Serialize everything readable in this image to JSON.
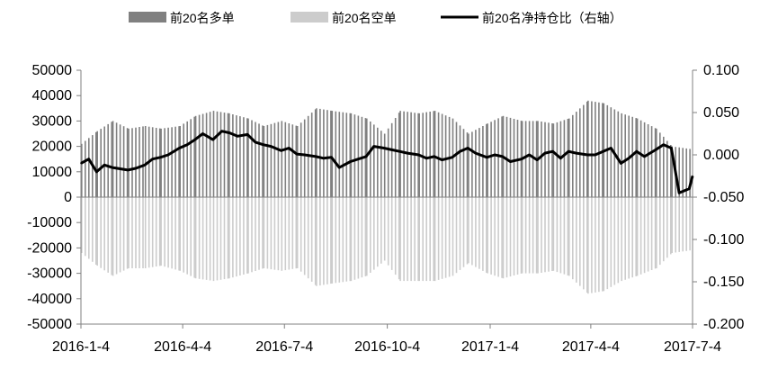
{
  "chart_data": {
    "type": "bar",
    "title": "",
    "xlabel": "",
    "ylabel": "",
    "ylim": [
      -50000,
      50000
    ],
    "y2lim": [
      -0.2,
      0.1
    ],
    "left_ticks": [
      "50000",
      "40000",
      "30000",
      "20000",
      "10000",
      "0",
      "-10000",
      "-20000",
      "-30000",
      "-40000",
      "-50000"
    ],
    "left_tick_values": [
      50000,
      40000,
      30000,
      20000,
      10000,
      0,
      -10000,
      -20000,
      -30000,
      -40000,
      -50000
    ],
    "right_ticks": [
      "0.100",
      "0.050",
      "0.000",
      "-0.050",
      "-0.100",
      "-0.150",
      "-0.200"
    ],
    "right_tick_values": [
      0.1,
      0.05,
      0.0,
      -0.05,
      -0.1,
      -0.15,
      -0.2
    ],
    "x_range": [
      "2016-01-04",
      "2017-07-04"
    ],
    "x_ticks": [
      {
        "label": "2016-1-4",
        "date": "2016-01-04"
      },
      {
        "label": "2016-4-4",
        "date": "2016-04-04"
      },
      {
        "label": "2016-7-4",
        "date": "2016-07-04"
      },
      {
        "label": "2016-10-4",
        "date": "2016-10-04"
      },
      {
        "label": "2017-1-4",
        "date": "2017-01-04"
      },
      {
        "label": "2017-4-4",
        "date": "2017-04-04"
      },
      {
        "label": "2017-7-4",
        "date": "2017-07-04"
      }
    ],
    "legend": {
      "placement": "top",
      "items": [
        {
          "label": "前20名多单",
          "kind": "bar",
          "color": "#808080"
        },
        {
          "label": "前20名空单",
          "kind": "bar",
          "color": "#cccccc"
        },
        {
          "label": "前20名净持仓比（右轴）",
          "kind": "line",
          "color": "#000000"
        }
      ]
    },
    "series": [
      {
        "name": "前20名多单",
        "axis": "left",
        "color": "#808080",
        "x": [
          "2016-01-04",
          "2016-01-18",
          "2016-02-01",
          "2016-02-15",
          "2016-03-01",
          "2016-03-15",
          "2016-04-01",
          "2016-04-15",
          "2016-05-01",
          "2016-05-15",
          "2016-06-01",
          "2016-06-15",
          "2016-07-01",
          "2016-07-15",
          "2016-08-01",
          "2016-08-15",
          "2016-09-01",
          "2016-09-15",
          "2016-10-01",
          "2016-10-15",
          "2016-11-01",
          "2016-11-15",
          "2016-12-01",
          "2016-12-15",
          "2017-01-01",
          "2017-01-15",
          "2017-02-01",
          "2017-02-15",
          "2017-03-01",
          "2017-03-15",
          "2017-04-01",
          "2017-04-15",
          "2017-05-01",
          "2017-05-15",
          "2017-06-01",
          "2017-06-15",
          "2017-07-01",
          "2017-07-04"
        ],
        "values": [
          21000,
          26000,
          30000,
          27000,
          28000,
          27000,
          28000,
          32000,
          34000,
          33000,
          31000,
          28000,
          30000,
          28000,
          35000,
          34000,
          33000,
          31000,
          25000,
          34000,
          33000,
          34000,
          31000,
          25000,
          29000,
          32000,
          30000,
          30000,
          29000,
          31000,
          38000,
          37000,
          33000,
          31000,
          27000,
          20000,
          19000,
          27000
        ]
      },
      {
        "name": "前20名空单",
        "axis": "left",
        "color": "#cccccc",
        "x": [
          "2016-01-04",
          "2016-01-18",
          "2016-02-01",
          "2016-02-15",
          "2016-03-01",
          "2016-03-15",
          "2016-04-01",
          "2016-04-15",
          "2016-05-01",
          "2016-05-15",
          "2016-06-01",
          "2016-06-15",
          "2016-07-01",
          "2016-07-15",
          "2016-08-01",
          "2016-08-15",
          "2016-09-01",
          "2016-09-15",
          "2016-10-01",
          "2016-10-15",
          "2016-11-01",
          "2016-11-15",
          "2016-12-01",
          "2016-12-15",
          "2017-01-01",
          "2017-01-15",
          "2017-02-01",
          "2017-02-15",
          "2017-03-01",
          "2017-03-15",
          "2017-04-01",
          "2017-04-15",
          "2017-05-01",
          "2017-05-15",
          "2017-06-01",
          "2017-06-15",
          "2017-07-01",
          "2017-07-04"
        ],
        "values": [
          -22000,
          -27000,
          -31000,
          -28000,
          -28000,
          -27000,
          -29000,
          -32000,
          -33000,
          -32000,
          -30000,
          -28000,
          -29000,
          -28000,
          -35000,
          -34000,
          -33000,
          -31000,
          -25000,
          -33000,
          -33000,
          -33000,
          -31000,
          -26000,
          -30000,
          -32000,
          -30000,
          -30000,
          -29000,
          -31000,
          -38000,
          -37000,
          -33000,
          -31000,
          -28000,
          -22000,
          -21000,
          -28000
        ]
      },
      {
        "name": "前20名净持仓比（右轴）",
        "axis": "right",
        "type": "line",
        "color": "#000000",
        "x": [
          "2016-01-04",
          "2016-01-11",
          "2016-01-18",
          "2016-01-25",
          "2016-02-01",
          "2016-02-15",
          "2016-02-22",
          "2016-03-01",
          "2016-03-08",
          "2016-03-15",
          "2016-03-22",
          "2016-04-01",
          "2016-04-08",
          "2016-04-15",
          "2016-04-22",
          "2016-05-01",
          "2016-05-09",
          "2016-05-16",
          "2016-05-23",
          "2016-06-01",
          "2016-06-08",
          "2016-06-15",
          "2016-06-22",
          "2016-07-01",
          "2016-07-08",
          "2016-07-15",
          "2016-07-22",
          "2016-08-01",
          "2016-08-08",
          "2016-08-15",
          "2016-08-22",
          "2016-09-01",
          "2016-09-08",
          "2016-09-15",
          "2016-09-22",
          "2016-10-01",
          "2016-10-08",
          "2016-10-15",
          "2016-10-22",
          "2016-11-01",
          "2016-11-08",
          "2016-11-15",
          "2016-11-22",
          "2016-12-01",
          "2016-12-08",
          "2016-12-15",
          "2016-12-22",
          "2017-01-01",
          "2017-01-08",
          "2017-01-15",
          "2017-01-22",
          "2017-02-01",
          "2017-02-08",
          "2017-02-15",
          "2017-02-22",
          "2017-03-01",
          "2017-03-08",
          "2017-03-15",
          "2017-03-22",
          "2017-04-01",
          "2017-04-08",
          "2017-04-15",
          "2017-04-22",
          "2017-05-01",
          "2017-05-08",
          "2017-05-15",
          "2017-05-22",
          "2017-06-01",
          "2017-06-08",
          "2017-06-15",
          "2017-06-22",
          "2017-07-01",
          "2017-07-04"
        ],
        "values": [
          -0.01,
          -0.005,
          -0.02,
          -0.012,
          -0.015,
          -0.018,
          -0.016,
          -0.012,
          -0.005,
          -0.003,
          0.0,
          0.008,
          0.012,
          0.018,
          0.025,
          0.018,
          0.028,
          0.026,
          0.022,
          0.024,
          0.015,
          0.012,
          0.01,
          0.005,
          0.008,
          0.001,
          0.0,
          -0.002,
          -0.004,
          -0.003,
          -0.015,
          -0.008,
          -0.005,
          -0.002,
          0.01,
          0.008,
          0.006,
          0.004,
          0.002,
          0.0,
          -0.004,
          -0.002,
          -0.006,
          -0.003,
          0.004,
          0.008,
          0.002,
          -0.003,
          0.0,
          -0.002,
          -0.008,
          -0.005,
          0.0,
          -0.006,
          0.002,
          0.004,
          -0.004,
          0.004,
          0.002,
          0.0,
          0.0,
          0.004,
          0.008,
          -0.01,
          -0.004,
          0.004,
          -0.002,
          0.006,
          0.012,
          0.008,
          -0.045,
          -0.04,
          -0.025
        ]
      }
    ],
    "grid": false
  }
}
